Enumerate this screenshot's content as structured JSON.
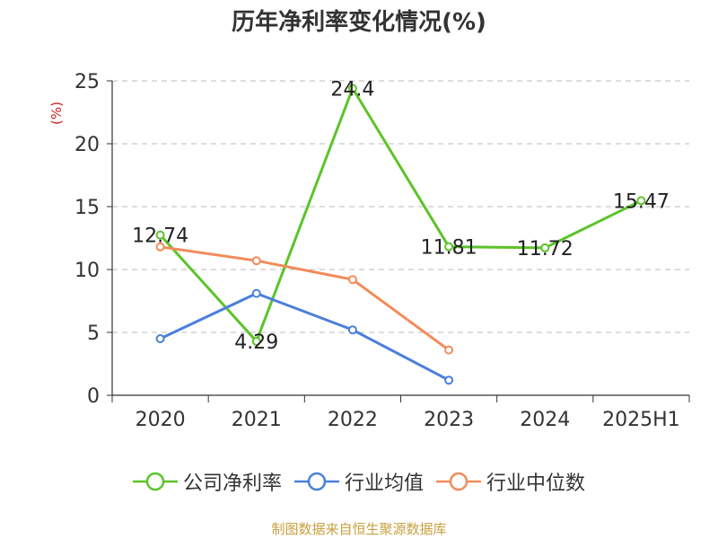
{
  "chart_data": {
    "type": "line",
    "title": "历年净利率变化情况(%)",
    "ylabel": "(%)",
    "categories": [
      "2020",
      "2021",
      "2022",
      "2023",
      "2024",
      "2025H1"
    ],
    "ylim": [
      0,
      25
    ],
    "yticks": [
      0,
      5,
      10,
      15,
      20,
      25
    ],
    "grid": true,
    "legend_position": "bottom",
    "series": [
      {
        "name": "公司净利率",
        "color": "#5cc42a",
        "values": [
          12.74,
          4.29,
          24.4,
          11.81,
          11.72,
          15.47
        ],
        "labels": [
          "12.74",
          "4.29",
          "24.4",
          "11.81",
          "11.72",
          "15.47"
        ]
      },
      {
        "name": "行业均值",
        "color": "#4a7fdc",
        "values": [
          4.5,
          8.1,
          5.2,
          1.2,
          null,
          null
        ]
      },
      {
        "name": "行业中位数",
        "color": "#f28b5a",
        "values": [
          11.8,
          10.7,
          9.2,
          3.6,
          null,
          null
        ]
      }
    ]
  },
  "source_note": "制图数据来自恒生聚源数据库"
}
